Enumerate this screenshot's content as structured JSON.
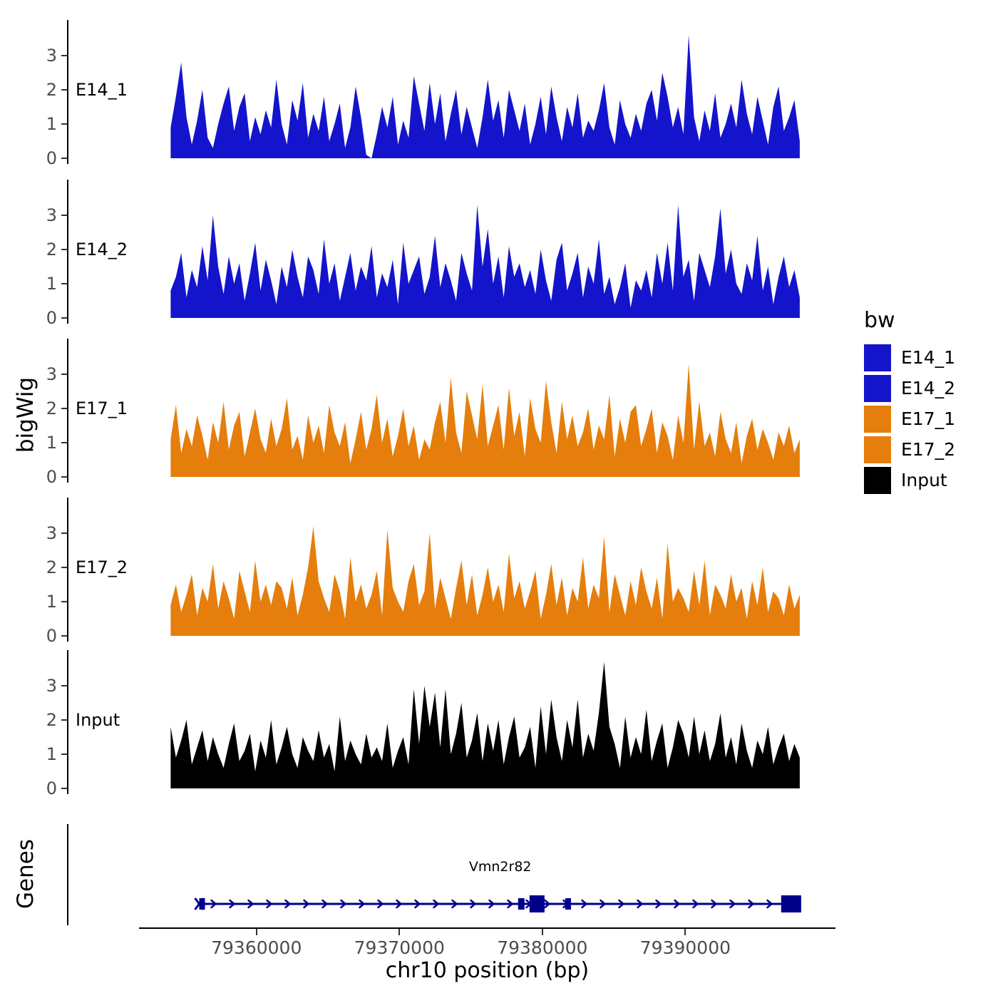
{
  "axes": {
    "y_title": "bigWig",
    "x_title": "chr10 position (bp)",
    "y_tick_labels": [
      "0",
      "1",
      "2",
      "3"
    ],
    "x_ticks": [
      {
        "value": 79360000,
        "label": "79360000"
      },
      {
        "value": 79370000,
        "label": "79370000"
      },
      {
        "value": 79380000,
        "label": "79380000"
      },
      {
        "value": 79390000,
        "label": "79390000"
      }
    ]
  },
  "genes": {
    "panel_title": "Genes",
    "gene": {
      "name": "Vmn2r82",
      "start": 79356000,
      "end": 79398100,
      "strand": "+",
      "color": "#00008B",
      "exons": [
        [
          79356000,
          79356400
        ],
        [
          79378300,
          79378750
        ],
        [
          79379100,
          79380150
        ],
        [
          79381600,
          79382000
        ],
        [
          79396700,
          79398100
        ]
      ]
    }
  },
  "legend": {
    "title": "bw",
    "items": [
      {
        "label": "E14_1",
        "color": "#1414CC"
      },
      {
        "label": "E14_2",
        "color": "#1414CC"
      },
      {
        "label": "E17_1",
        "color": "#E57E0C"
      },
      {
        "label": "E17_2",
        "color": "#E57E0C"
      },
      {
        "label": "Input",
        "color": "#000000"
      }
    ]
  },
  "chart_data": {
    "type": "area",
    "title": "",
    "xlabel": "chr10 position (bp)",
    "ylabel": "bigWig",
    "x_domain": [
      79346900,
      79400400
    ],
    "x_range": [
      79354000,
      79398000
    ],
    "ylim": [
      0,
      3.8
    ],
    "y_ticks": [
      0,
      1,
      2,
      3
    ],
    "tracks": [
      {
        "name": "E14_1",
        "color": "#1414CC",
        "values": [
          0.9,
          1.8,
          2.8,
          1.2,
          0.4,
          1.1,
          2.0,
          0.6,
          0.3,
          1.0,
          1.6,
          2.1,
          0.8,
          1.5,
          1.9,
          0.5,
          1.2,
          0.7,
          1.4,
          0.9,
          2.3,
          1.0,
          0.4,
          1.7,
          1.1,
          2.2,
          0.6,
          1.3,
          0.8,
          1.8,
          0.5,
          1.0,
          1.6,
          0.3,
          0.9,
          2.1,
          1.2,
          0.1,
          0.0,
          0.7,
          1.5,
          0.9,
          1.8,
          0.4,
          1.1,
          0.6,
          2.4,
          1.6,
          0.8,
          2.2,
          1.0,
          1.9,
          0.5,
          1.3,
          2.0,
          0.7,
          1.5,
          0.9,
          0.3,
          1.2,
          2.3,
          1.1,
          1.7,
          0.6,
          2.0,
          1.4,
          0.8,
          1.6,
          0.4,
          1.0,
          1.8,
          0.7,
          2.1,
          1.2,
          0.5,
          1.5,
          0.9,
          1.9,
          0.6,
          1.1,
          0.8,
          1.4,
          2.2,
          0.9,
          0.4,
          1.7,
          1.0,
          0.6,
          1.3,
          0.8,
          1.6,
          2.0,
          1.1,
          2.5,
          1.8,
          0.9,
          1.5,
          0.7,
          3.6,
          1.2,
          0.5,
          1.4,
          0.8,
          1.9,
          0.6,
          1.0,
          1.6,
          0.9,
          2.3,
          1.3,
          0.7,
          1.8,
          1.1,
          0.4,
          1.5,
          2.1,
          0.8,
          1.2,
          1.7,
          0.5
        ]
      },
      {
        "name": "E14_2",
        "color": "#1414CC",
        "values": [
          0.8,
          1.2,
          1.9,
          0.6,
          1.4,
          0.9,
          2.1,
          1.1,
          3.0,
          1.5,
          0.7,
          1.8,
          1.0,
          1.6,
          0.5,
          1.3,
          2.2,
          0.8,
          1.7,
          1.1,
          0.4,
          1.5,
          0.9,
          2.0,
          1.2,
          0.6,
          1.8,
          1.4,
          0.7,
          2.3,
          1.0,
          1.6,
          0.5,
          1.2,
          1.9,
          0.8,
          1.5,
          1.1,
          2.1,
          0.6,
          1.3,
          0.9,
          1.7,
          0.4,
          2.2,
          1.0,
          1.4,
          1.8,
          0.7,
          1.2,
          2.4,
          0.9,
          1.6,
          1.1,
          0.5,
          1.9,
          1.3,
          0.8,
          3.3,
          1.5,
          2.6,
          1.0,
          1.8,
          0.6,
          2.1,
          1.2,
          1.6,
          0.9,
          1.4,
          0.7,
          2.0,
          1.1,
          0.5,
          1.7,
          2.2,
          0.8,
          1.3,
          1.9,
          0.6,
          1.5,
          1.0,
          2.3,
          0.7,
          1.2,
          0.4,
          0.9,
          1.6,
          0.3,
          1.1,
          0.8,
          1.4,
          0.6,
          1.9,
          1.0,
          2.2,
          0.8,
          3.3,
          1.2,
          1.7,
          0.5,
          1.9,
          1.4,
          0.9,
          1.8,
          3.2,
          1.3,
          2.0,
          1.0,
          0.7,
          1.6,
          1.1,
          2.4,
          0.8,
          1.5,
          0.4,
          1.2,
          1.8,
          0.9,
          1.4,
          0.6
        ]
      },
      {
        "name": "E17_1",
        "color": "#E57E0C",
        "values": [
          1.1,
          2.1,
          0.7,
          1.4,
          0.9,
          1.8,
          1.2,
          0.5,
          1.6,
          1.0,
          2.2,
          0.8,
          1.5,
          1.9,
          0.6,
          1.3,
          2.0,
          1.1,
          0.7,
          1.7,
          0.9,
          1.4,
          2.3,
          0.8,
          1.2,
          0.5,
          1.8,
          1.0,
          1.5,
          0.7,
          2.1,
          1.3,
          0.9,
          1.6,
          0.4,
          1.1,
          1.9,
          0.8,
          1.4,
          2.4,
          1.0,
          1.7,
          0.6,
          1.2,
          2.0,
          0.9,
          1.5,
          0.5,
          1.1,
          0.8,
          1.6,
          2.2,
          1.0,
          2.9,
          1.3,
          0.7,
          2.5,
          1.8,
          1.1,
          2.7,
          0.9,
          1.5,
          2.1,
          0.8,
          2.6,
          1.2,
          1.9,
          0.6,
          2.3,
          1.4,
          1.0,
          2.8,
          1.6,
          0.7,
          2.2,
          1.1,
          1.8,
          0.9,
          1.3,
          2.0,
          0.8,
          1.5,
          1.1,
          2.4,
          0.6,
          1.7,
          1.0,
          1.9,
          2.1,
          0.9,
          1.4,
          2.0,
          0.7,
          1.6,
          1.2,
          0.5,
          1.8,
          1.0,
          3.3,
          0.8,
          2.2,
          0.9,
          1.3,
          0.6,
          1.9,
          1.1,
          0.7,
          1.6,
          0.4,
          1.2,
          1.7,
          0.8,
          1.4,
          1.0,
          0.5,
          1.3,
          0.9,
          1.5,
          0.7,
          1.1
        ]
      },
      {
        "name": "E17_2",
        "color": "#E57E0C",
        "values": [
          0.9,
          1.5,
          0.7,
          1.2,
          1.8,
          0.6,
          1.4,
          1.0,
          2.1,
          0.8,
          1.6,
          1.1,
          0.5,
          1.9,
          1.3,
          0.7,
          2.2,
          1.0,
          1.5,
          0.9,
          1.6,
          1.4,
          0.8,
          1.7,
          0.6,
          1.2,
          2.0,
          3.2,
          1.6,
          1.1,
          0.7,
          1.8,
          1.3,
          0.5,
          2.3,
          1.0,
          1.5,
          0.8,
          1.2,
          1.9,
          0.6,
          3.1,
          1.4,
          1.0,
          0.7,
          1.6,
          2.1,
          0.9,
          1.3,
          3.0,
          0.8,
          1.7,
          1.1,
          0.5,
          1.4,
          2.2,
          0.9,
          1.8,
          0.6,
          1.2,
          2.0,
          1.0,
          1.5,
          0.7,
          2.4,
          1.1,
          1.6,
          0.8,
          1.3,
          1.9,
          0.5,
          1.2,
          2.1,
          0.9,
          1.7,
          0.6,
          1.4,
          1.0,
          2.3,
          0.8,
          1.5,
          1.1,
          2.9,
          0.7,
          1.8,
          1.2,
          0.6,
          1.6,
          0.9,
          2.0,
          1.3,
          0.8,
          1.7,
          0.5,
          2.7,
          1.0,
          1.4,
          1.1,
          0.7,
          1.9,
          0.9,
          2.2,
          0.6,
          1.5,
          1.2,
          0.8,
          1.8,
          1.0,
          1.4,
          0.5,
          1.6,
          0.9,
          2.0,
          0.7,
          1.3,
          1.1,
          0.6,
          1.5,
          0.8,
          1.2
        ]
      },
      {
        "name": "Input",
        "color": "#000000",
        "values": [
          1.8,
          0.9,
          1.4,
          2.0,
          0.7,
          1.2,
          1.7,
          0.8,
          1.5,
          1.0,
          0.6,
          1.3,
          1.9,
          0.8,
          1.1,
          1.6,
          0.5,
          1.4,
          0.9,
          2.0,
          0.7,
          1.2,
          1.8,
          1.0,
          0.6,
          1.5,
          1.1,
          0.8,
          1.7,
          0.9,
          1.3,
          0.5,
          2.1,
          0.8,
          1.4,
          1.0,
          0.7,
          1.6,
          0.9,
          1.2,
          0.8,
          1.9,
          0.6,
          1.1,
          1.5,
          0.7,
          2.9,
          1.3,
          3.0,
          1.8,
          2.8,
          1.2,
          2.9,
          1.0,
          1.6,
          2.5,
          0.9,
          1.4,
          2.2,
          0.8,
          1.9,
          1.1,
          2.0,
          0.7,
          1.5,
          2.1,
          0.9,
          1.2,
          1.8,
          0.6,
          2.4,
          1.0,
          2.6,
          1.5,
          0.8,
          2.0,
          1.2,
          2.6,
          0.9,
          1.6,
          1.1,
          2.2,
          3.7,
          1.8,
          1.3,
          0.6,
          2.1,
          0.9,
          1.5,
          1.0,
          2.3,
          0.8,
          1.4,
          1.9,
          0.6,
          1.2,
          2.0,
          1.6,
          0.9,
          2.1,
          1.0,
          1.7,
          0.8,
          1.3,
          2.2,
          0.9,
          1.5,
          0.7,
          1.9,
          1.1,
          0.6,
          1.4,
          1.0,
          1.8,
          0.7,
          1.2,
          1.6,
          0.8,
          1.3,
          0.9
        ]
      }
    ]
  }
}
